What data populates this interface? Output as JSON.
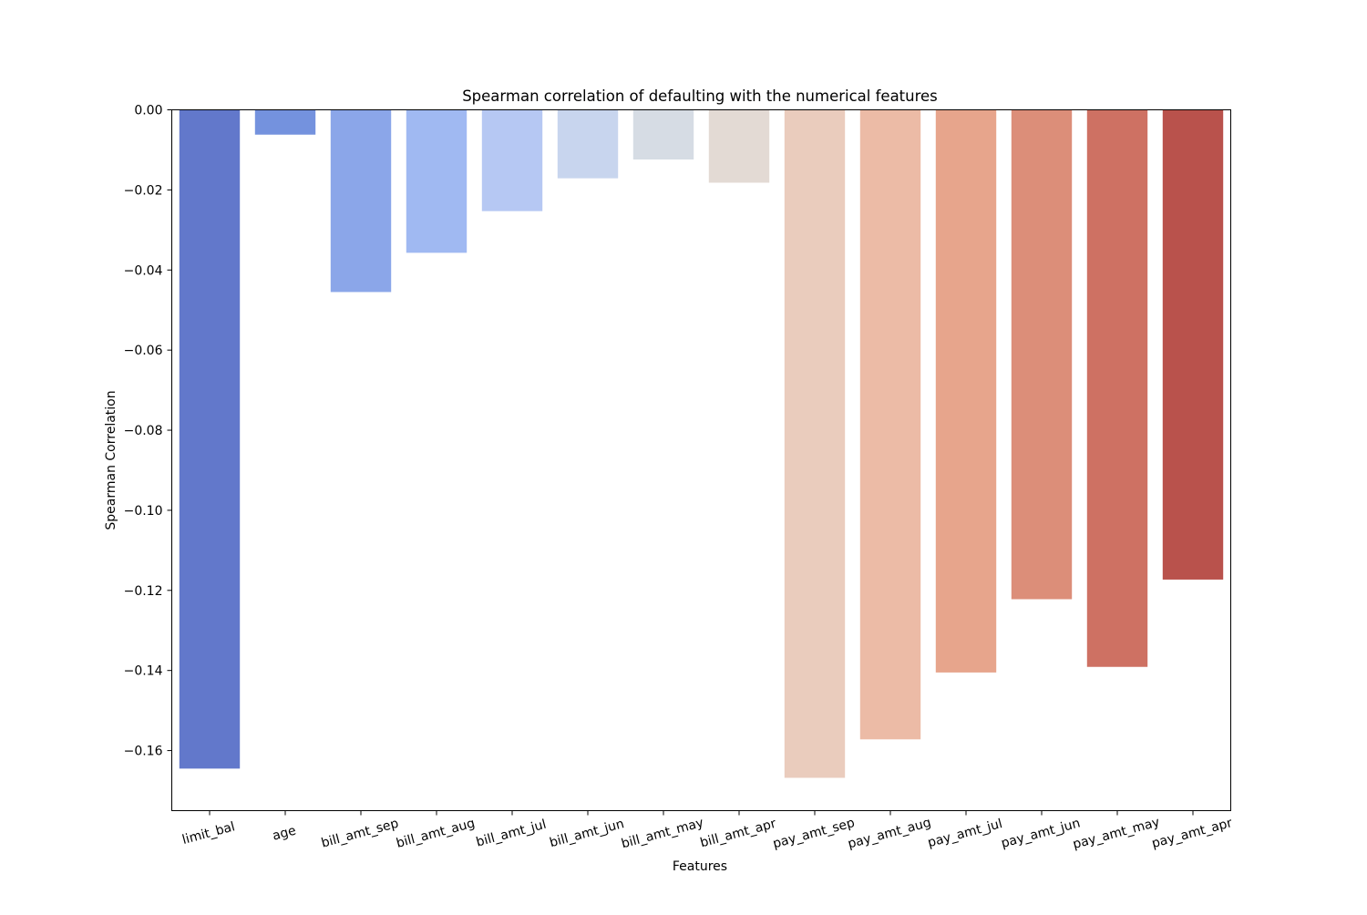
{
  "chart_data": {
    "type": "bar",
    "title": "Spearman correlation of defaulting with the numerical features",
    "xlabel": "Features",
    "ylabel": "Spearman Correlation",
    "categories": [
      "limit_bal",
      "age",
      "bill_amt_sep",
      "bill_amt_aug",
      "bill_amt_jul",
      "bill_amt_jun",
      "bill_amt_may",
      "bill_amt_apr",
      "pay_amt_sep",
      "pay_amt_aug",
      "pay_amt_jul",
      "pay_amt_jun",
      "pay_amt_may",
      "pay_amt_apr"
    ],
    "values": [
      -0.1645,
      -0.0062,
      -0.0455,
      -0.0357,
      -0.0253,
      -0.0171,
      -0.0124,
      -0.0182,
      -0.1668,
      -0.1572,
      -0.1405,
      -0.1222,
      -0.1391,
      -0.1173
    ],
    "colors": [
      "#6278CB",
      "#7492DE",
      "#8BA6E9",
      "#A0B9F2",
      "#B6C8F3",
      "#C8D5EE",
      "#D6DCE4",
      "#E3DAD4",
      "#EACCBD",
      "#ECBBA6",
      "#E7A58C",
      "#DC8E79",
      "#CE7163",
      "#B9524C"
    ],
    "ylim": [
      -0.175,
      0.0
    ],
    "yticks": [
      0.0,
      -0.02,
      -0.04,
      -0.06,
      -0.08,
      -0.1,
      -0.12,
      -0.14,
      -0.16
    ],
    "ytick_labels": [
      "0.00",
      "−0.02",
      "−0.04",
      "−0.06",
      "−0.08",
      "−0.10",
      "−0.12",
      "−0.14",
      "−0.16"
    ],
    "grid": false,
    "legend": "none"
  }
}
